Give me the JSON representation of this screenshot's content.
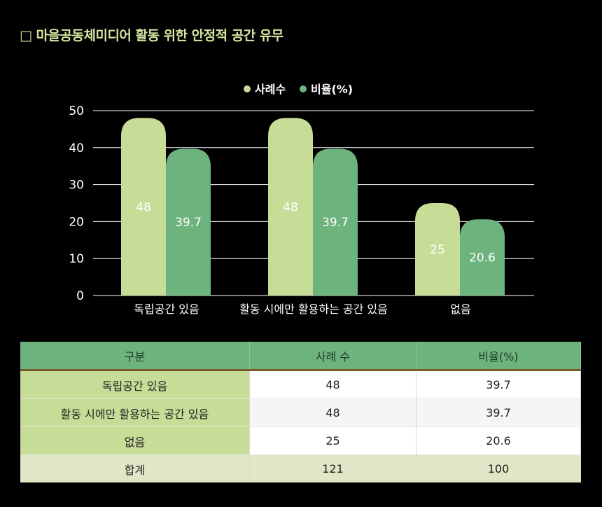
{
  "title": "□ 마을공동체미디어 활동 위한 안정적 공간 유무",
  "colors": {
    "series1": "#c6dc97",
    "series2": "#6db37d",
    "axis_text": "#ffffff",
    "grid": "#ffffff"
  },
  "chart_data": {
    "type": "bar",
    "categories": [
      "독립공간 있음",
      "활동 시에만 활용하는 공간 있음",
      "없음"
    ],
    "series": [
      {
        "name": "사례수",
        "values": [
          48,
          48,
          25
        ]
      },
      {
        "name": "비율(%)",
        "values": [
          39.7,
          39.7,
          20.6
        ]
      }
    ],
    "value_labels": [
      [
        "48",
        "48",
        "25"
      ],
      [
        "39.7",
        "39.7",
        "20.6"
      ]
    ],
    "ylim": [
      0,
      50
    ],
    "yticks": [
      "0",
      "10",
      "20",
      "30",
      "40",
      "50"
    ],
    "legend_position": "top",
    "grid": true
  },
  "table": {
    "headers": [
      "구분",
      "사례 수",
      "비율(%)"
    ],
    "rows": [
      [
        "독립공간 있음",
        "48",
        "39.7"
      ],
      [
        "활동 시에만 활용하는 공간 있음",
        "48",
        "39.7"
      ],
      [
        "없음",
        "25",
        "20.6"
      ]
    ],
    "total": [
      "합계",
      "121",
      "100"
    ]
  }
}
